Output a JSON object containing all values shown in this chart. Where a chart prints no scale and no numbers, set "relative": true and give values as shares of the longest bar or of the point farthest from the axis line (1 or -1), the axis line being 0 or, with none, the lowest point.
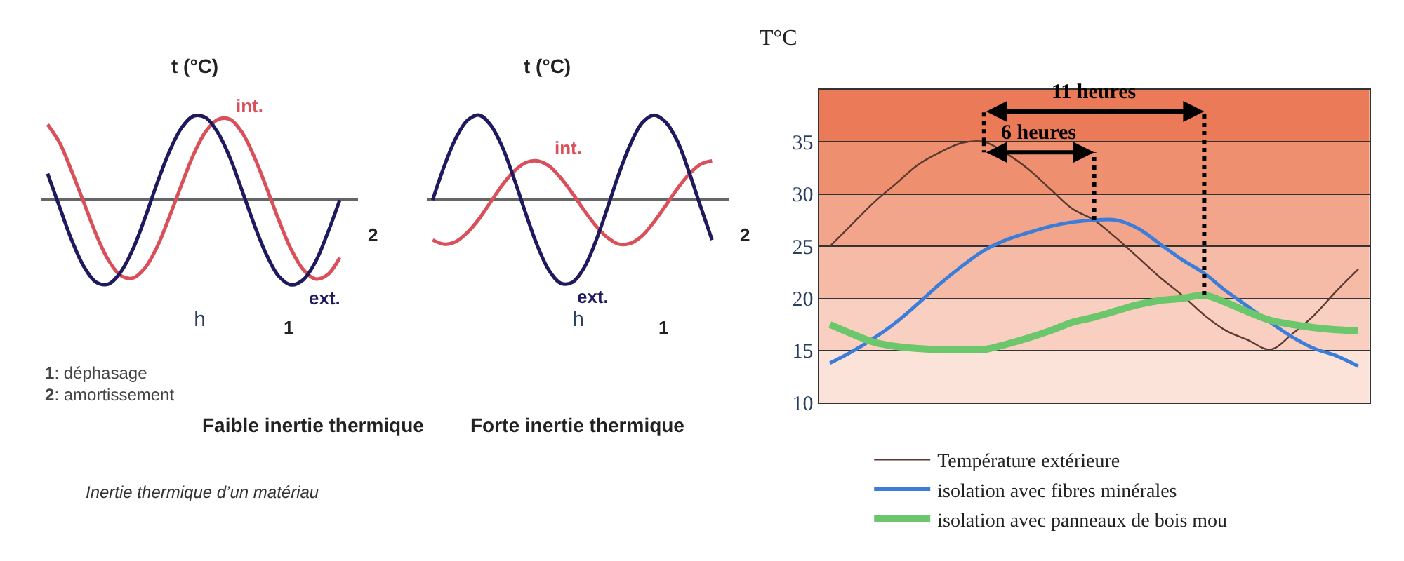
{
  "chart_data": [
    {
      "type": "line",
      "title": "Faible inertie thermique",
      "xlabel": "h",
      "ylabel": "t (°C)",
      "relative": true,
      "tick_labels": false,
      "grid": false,
      "legend": false,
      "categories": [
        null,
        null,
        null,
        null,
        null,
        null,
        null,
        null,
        null,
        null,
        null,
        null,
        null,
        null,
        null,
        null,
        null,
        null,
        null,
        null,
        null,
        null,
        null,
        null,
        null
      ],
      "series": [
        {
          "name": "int.",
          "color": "#d9505a",
          "values": [
            0.89,
            0.67,
            0.33,
            -0.04,
            -0.41,
            -0.71,
            -0.89,
            -0.92,
            -0.8,
            -0.55,
            -0.2,
            0.18,
            0.54,
            0.81,
            0.95,
            0.95,
            0.79,
            0.5,
            0.14,
            -0.24,
            -0.58,
            -0.82,
            -0.93,
            -0.88,
            -0.68
          ]
        },
        {
          "name": "ext.",
          "color": "#1f1a5e",
          "values": [
            0.31,
            -0.09,
            -0.48,
            -0.79,
            -0.97,
            -0.99,
            -0.85,
            -0.58,
            -0.21,
            0.2,
            0.57,
            0.85,
            0.99,
            0.97,
            0.79,
            0.49,
            0.1,
            -0.3,
            -0.65,
            -0.9,
            -1.0,
            -0.94,
            -0.73,
            -0.39,
            0.0
          ]
        }
      ],
      "annotations": [
        "2",
        "1",
        "1: déphasage\n2: amortissement",
        "Inertie thermique d’un matériau"
      ]
    },
    {
      "type": "line",
      "title": "Forte inertie thermique",
      "xlabel": "h",
      "ylabel": "t (°C)",
      "relative": true,
      "tick_labels": false,
      "grid": false,
      "legend": false,
      "categories": [
        null,
        null,
        null,
        null,
        null,
        null,
        null,
        null,
        null,
        null,
        null,
        null,
        null,
        null,
        null,
        null,
        null,
        null,
        null,
        null,
        null,
        null,
        null,
        null,
        null
      ],
      "series": [
        {
          "name": "int.",
          "color": "#d9505a",
          "values": [
            -0.47,
            -0.52,
            -0.49,
            -0.38,
            -0.22,
            -0.02,
            0.18,
            0.34,
            0.44,
            0.46,
            0.4,
            0.26,
            0.08,
            -0.12,
            -0.3,
            -0.44,
            -0.52,
            -0.51,
            -0.42,
            -0.26,
            -0.07,
            0.13,
            0.3,
            0.42,
            0.46
          ]
        },
        {
          "name": "ext.",
          "color": "#1f1a5e",
          "values": [
            0,
            0.4,
            0.73,
            0.94,
            1.0,
            0.88,
            0.62,
            0.25,
            -0.16,
            -0.54,
            -0.83,
            -0.98,
            -0.97,
            -0.8,
            -0.49,
            -0.1,
            0.31,
            0.66,
            0.91,
            1.0,
            0.92,
            0.7,
            0.34,
            -0.07,
            -0.47
          ]
        }
      ],
      "annotations": [
        "2",
        "1"
      ]
    },
    {
      "type": "line",
      "ylabel": "T°C",
      "ylim": [
        10,
        40
      ],
      "yticks": [
        10,
        15,
        20,
        25,
        30,
        35
      ],
      "tick_labels": "y",
      "grid": true,
      "legend": "bottom",
      "categories": [
        null,
        null,
        null,
        null,
        null,
        null,
        null,
        null,
        null,
        null,
        null,
        null,
        null,
        null,
        null,
        null,
        null,
        null,
        null,
        null,
        null,
        null,
        null,
        null,
        null
      ],
      "series": [
        {
          "name": "Température extérieure",
          "color": "#5a3a30",
          "values": [
            25,
            27.1,
            29.2,
            31,
            32.8,
            34,
            34.9,
            35,
            33.9,
            32.4,
            30.5,
            28.6,
            27.5,
            25.8,
            23.9,
            22,
            20.3,
            18.4,
            16.9,
            16,
            15.1,
            16.6,
            18.4,
            20.7,
            22.8
          ]
        },
        {
          "name": "isolation avec fibres minérales",
          "color": "#3b7dd8",
          "values": [
            13.8,
            14.9,
            16.2,
            17.7,
            19.5,
            21.4,
            23.1,
            24.6,
            25.6,
            26.3,
            26.9,
            27.3,
            27.5,
            27.5,
            26.7,
            25.2,
            23.7,
            22.4,
            20.7,
            19.2,
            17.7,
            16.3,
            15.2,
            14.5,
            13.5
          ]
        },
        {
          "name": "isolation avec panneaux de bois mou",
          "color": "#6cc66c",
          "values": [
            17.5,
            16.6,
            15.8,
            15.4,
            15.2,
            15.1,
            15.1,
            15.1,
            15.6,
            16.2,
            16.9,
            17.7,
            18.2,
            18.8,
            19.4,
            19.8,
            20.0,
            20.3,
            19.6,
            18.7,
            17.9,
            17.5,
            17.2,
            17.0,
            16.9
          ]
        }
      ],
      "bands": [
        {
          "axis": "y",
          "from": 10,
          "to": 15,
          "color": "#fbe3da"
        },
        {
          "axis": "y",
          "from": 15,
          "to": 20,
          "color": "#f8cfc0"
        },
        {
          "axis": "y",
          "from": 20,
          "to": 25,
          "color": "#f5bba6"
        },
        {
          "axis": "y",
          "from": 25,
          "to": 30,
          "color": "#f2a58b"
        },
        {
          "axis": "y",
          "from": 30,
          "to": 35,
          "color": "#ee8f70"
        },
        {
          "axis": "y",
          "from": 35,
          "to": 40,
          "color": "#ea7a58"
        }
      ],
      "annotations": [
        "6 heures",
        "11 heures"
      ]
    }
  ]
}
